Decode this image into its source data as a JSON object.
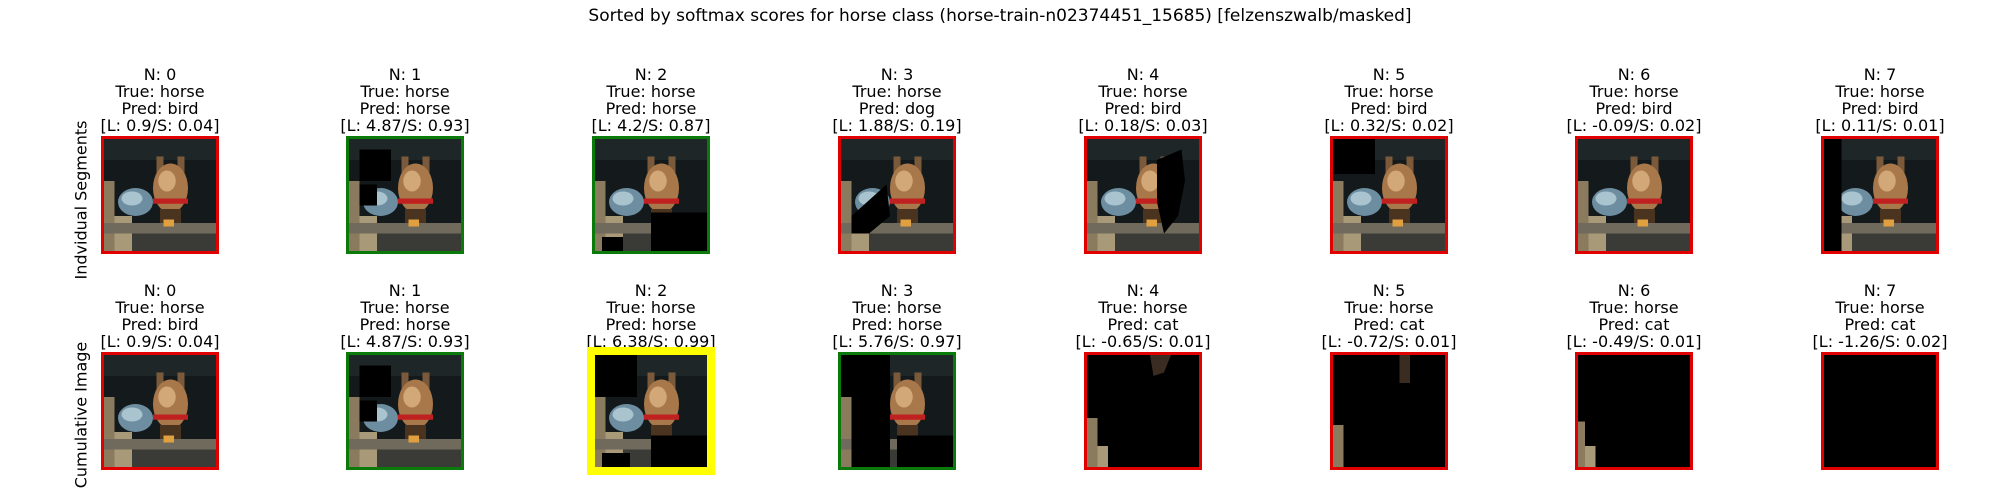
{
  "title": "Sorted by softmax scores for horse class (horse-train-n02374451_15685) [felzenszwalb/masked]",
  "colors": {
    "correct": "#0a7a0a",
    "incorrect": "#e00000",
    "best": "#ffff00"
  },
  "chart_data": {
    "type": "image-grid",
    "title": "Sorted by softmax scores for horse class (horse-train-n02374451_15685) [felzenszwalb/masked]",
    "rows": [
      {
        "label": "Indvidual Segments",
        "panels": [
          {
            "n": "N: 0",
            "true": "True: horse",
            "pred": "Pred: bird",
            "score": "[L: 0.9/S: 0.04]",
            "border": "red",
            "mask": "none"
          },
          {
            "n": "N: 1",
            "true": "True: horse",
            "pred": "Pred: horse",
            "score": "[L: 4.87/S: 0.93]",
            "border": "green",
            "mask": "topleft"
          },
          {
            "n": "N: 2",
            "true": "True: horse",
            "pred": "Pred: horse",
            "score": "[L: 4.2/S: 0.87]",
            "border": "green",
            "mask": "bottomright"
          },
          {
            "n": "N: 3",
            "true": "True: horse",
            "pred": "Pred: dog",
            "score": "[L: 1.88/S: 0.19]",
            "border": "red",
            "mask": "bottomleft"
          },
          {
            "n": "N: 4",
            "true": "True: horse",
            "pred": "Pred: bird",
            "score": "[L: 0.18/S: 0.03]",
            "border": "red",
            "mask": "right"
          },
          {
            "n": "N: 5",
            "true": "True: horse",
            "pred": "Pred: bird",
            "score": "[L: 0.32/S: 0.02]",
            "border": "red",
            "mask": "topleftsmall"
          },
          {
            "n": "N: 6",
            "true": "True: horse",
            "pred": "Pred: bird",
            "score": "[L: -0.09/S: 0.02]",
            "border": "red",
            "mask": "none"
          },
          {
            "n": "N: 7",
            "true": "True: horse",
            "pred": "Pred: bird",
            "score": "[L: 0.11/S: 0.01]",
            "border": "red",
            "mask": "leftstrip"
          }
        ]
      },
      {
        "label": "Cumulative Image",
        "panels": [
          {
            "n": "N: 0",
            "true": "True: horse",
            "pred": "Pred: bird",
            "score": "[L: 0.9/S: 0.04]",
            "border": "red",
            "mask": "none"
          },
          {
            "n": "N: 1",
            "true": "True: horse",
            "pred": "Pred: horse",
            "score": "[L: 4.87/S: 0.93]",
            "border": "green",
            "mask": "topleft"
          },
          {
            "n": "N: 2",
            "true": "True: horse",
            "pred": "Pred: horse",
            "score": "[L: 6.38/S: 0.99]",
            "border": "yellow",
            "mask": "cum2"
          },
          {
            "n": "N: 3",
            "true": "True: horse",
            "pred": "Pred: horse",
            "score": "[L: 5.76/S: 0.97]",
            "border": "green",
            "mask": "cum3"
          },
          {
            "n": "N: 4",
            "true": "True: horse",
            "pred": "Pred: cat",
            "score": "[L: -0.65/S: 0.01]",
            "border": "red",
            "mask": "cum4"
          },
          {
            "n": "N: 5",
            "true": "True: horse",
            "pred": "Pred: cat",
            "score": "[L: -0.72/S: 0.01]",
            "border": "red",
            "mask": "cum5"
          },
          {
            "n": "N: 6",
            "true": "True: horse",
            "pred": "Pred: cat",
            "score": "[L: -0.49/S: 0.01]",
            "border": "red",
            "mask": "cum6"
          },
          {
            "n": "N: 7",
            "true": "True: horse",
            "pred": "Pred: cat",
            "score": "[L: -1.26/S: 0.02]",
            "border": "red",
            "mask": "all"
          }
        ]
      }
    ]
  }
}
